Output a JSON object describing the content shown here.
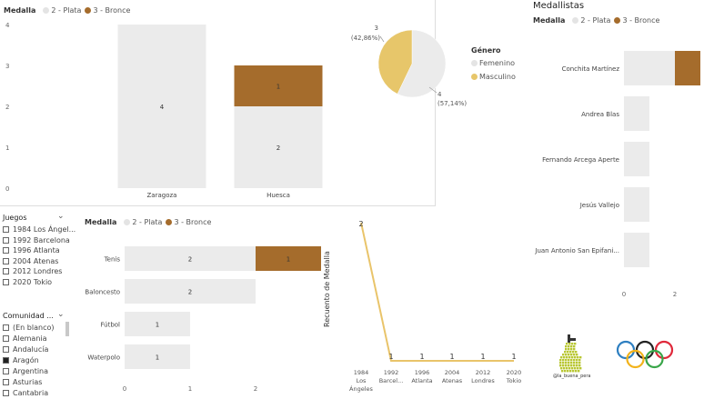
{
  "colors": {
    "plata": "#ebebeb",
    "bronce": "#a56c2c",
    "femenino": "#ebebeb",
    "masculino": "#e7c66a",
    "line": "#e9c46a"
  },
  "top_chart": {
    "legend_title": "Medalla",
    "legend_items": [
      "2 - Plata",
      "3 - Bronce"
    ],
    "chart_data": {
      "type": "bar",
      "categories": [
        "Zaragoza",
        "Huesca"
      ],
      "series": [
        {
          "name": "2 - Plata",
          "values": [
            4,
            2
          ]
        },
        {
          "name": "3 - Bronce",
          "values": [
            0,
            1
          ]
        }
      ],
      "ylim": [
        0,
        4
      ],
      "yticks": [
        "0",
        "1",
        "2",
        "3",
        "4"
      ],
      "data_labels": [
        "4",
        "2",
        "1"
      ]
    }
  },
  "pie": {
    "legend_title": "Género",
    "legend_items": [
      "Femenino",
      "Masculino"
    ],
    "chart_data": {
      "type": "pie",
      "labels": [
        "Femenino",
        "Masculino"
      ],
      "values": [
        4,
        3
      ],
      "data_labels": [
        "4\n(57,14%)",
        "3\n(42,86%)"
      ]
    },
    "label_fem_count": "4",
    "label_fem_pct": "(57,14%)",
    "label_mas_count": "3",
    "label_mas_pct": "(42,86%)"
  },
  "medallistas": {
    "title": "Medallistas",
    "legend_title": "Medalla",
    "legend_items": [
      "2 - Plata",
      "3 - Bronce"
    ],
    "chart_data": {
      "type": "bar",
      "categories": [
        "Conchita Martínez",
        "Andrea Blas",
        "Fernando Arcega Aperte",
        "Jesús Vallejo",
        "Juan Antonio San Epifani..."
      ],
      "series": [
        {
          "name": "2 - Plata",
          "values": [
            2,
            1,
            1,
            1,
            1
          ]
        },
        {
          "name": "3 - Bronce",
          "values": [
            1,
            0,
            0,
            0,
            0
          ]
        }
      ],
      "xticks": [
        "0",
        "2"
      ]
    }
  },
  "juegos_slicer": {
    "title": "Juegos",
    "items": [
      "1984 Los Ángel...",
      "1992 Barcelona",
      "1996 Atlanta",
      "2004 Atenas",
      "2012 Londres",
      "2020 Tokio"
    ]
  },
  "comunidad_slicer": {
    "title": "Comunidad ...",
    "items": [
      {
        "label": "(En blanco)",
        "checked": false
      },
      {
        "label": "Alemania",
        "checked": false
      },
      {
        "label": "Andalucía",
        "checked": false
      },
      {
        "label": "Aragón",
        "checked": true
      },
      {
        "label": "Argentina",
        "checked": false
      },
      {
        "label": "Asturias",
        "checked": false
      },
      {
        "label": "Cantabria",
        "checked": false
      }
    ]
  },
  "sport_chart": {
    "legend_title": "Medalla",
    "legend_items": [
      "2 - Plata",
      "3 - Bronce"
    ],
    "chart_data": {
      "type": "bar",
      "categories": [
        "Tenis",
        "Baloncesto",
        "Fútbol",
        "Waterpolo"
      ],
      "series": [
        {
          "name": "2 - Plata",
          "values": [
            2,
            2,
            1,
            1
          ]
        },
        {
          "name": "3 - Bronce",
          "values": [
            1,
            0,
            0,
            0
          ]
        }
      ],
      "xticks": [
        "0",
        "1",
        "2"
      ]
    }
  },
  "line_chart": {
    "ylabel": "Recuento de Medalla",
    "chart_data": {
      "type": "line",
      "categories": [
        "1984 Los Ángeles",
        "1992 Barcel...",
        "1996 Atlanta",
        "2004 Atenas",
        "2012 Londres",
        "2020 Tokio"
      ],
      "values": [
        2,
        1,
        1,
        1,
        1,
        1
      ],
      "data_labels": [
        "2",
        "1",
        "1",
        "1",
        "1",
        "1"
      ]
    },
    "xlabels": [
      [
        "1984",
        "Los",
        "Ángeles"
      ],
      [
        "1992",
        "Barcel..."
      ],
      [
        "1996",
        "Atlanta"
      ],
      [
        "2004",
        "Atenas"
      ],
      [
        "2012",
        "Londres"
      ],
      [
        "2020",
        "Tokio"
      ]
    ]
  },
  "logo": {
    "handle": "@la_buena_pera"
  }
}
